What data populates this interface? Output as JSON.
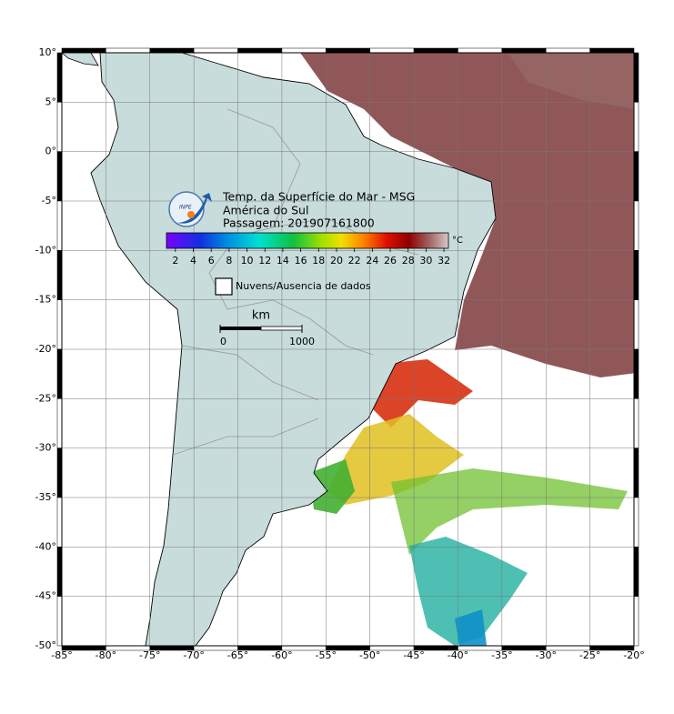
{
  "title_lines": [
    "Temp. da Superfície do Mar - MSG",
    "América do Sul",
    "Passagem: 201907161800"
  ],
  "logo_text": "INPE",
  "colorbar": {
    "unit": "°C",
    "lim": [
      1,
      32.5
    ],
    "ticks": [
      2,
      4,
      6,
      8,
      10,
      12,
      14,
      16,
      18,
      20,
      22,
      24,
      26,
      28,
      30,
      32
    ]
  },
  "legend": "Nuvens/Ausencia de dados",
  "scale_bar": {
    "unit": "km",
    "ticks": [
      0,
      1000
    ]
  },
  "map": {
    "xlim": [
      -85,
      -20
    ],
    "ylim": [
      -50,
      10
    ],
    "grid": true,
    "xticks": [
      {
        "value": -85,
        "label": "-85°"
      },
      {
        "value": -80,
        "label": "-80°"
      },
      {
        "value": -75,
        "label": "-75°"
      },
      {
        "value": -70,
        "label": "-70°"
      },
      {
        "value": -65,
        "label": "-65°"
      },
      {
        "value": -60,
        "label": "-60°"
      },
      {
        "value": -55,
        "label": "-55°"
      },
      {
        "value": -50,
        "label": "-50°"
      },
      {
        "value": -45,
        "label": "-45°"
      },
      {
        "value": -40,
        "label": "-40°"
      },
      {
        "value": -35,
        "label": "-35°"
      },
      {
        "value": -30,
        "label": "-30°"
      },
      {
        "value": -25,
        "label": "-25°"
      },
      {
        "value": -20,
        "label": "-20°"
      }
    ],
    "yticks": [
      {
        "value": 10,
        "label": "10°"
      },
      {
        "value": 5,
        "label": "5°"
      },
      {
        "value": 0,
        "label": "0°"
      },
      {
        "value": -5,
        "label": "-5°"
      },
      {
        "value": -10,
        "label": "-10°"
      },
      {
        "value": -15,
        "label": "-15°"
      },
      {
        "value": -20,
        "label": "-20°"
      },
      {
        "value": -25,
        "label": "-25°"
      },
      {
        "value": -30,
        "label": "-30°"
      },
      {
        "value": -35,
        "label": "-35°"
      },
      {
        "value": -40,
        "label": "-40°"
      },
      {
        "value": -45,
        "label": "-45°"
      },
      {
        "value": -50,
        "label": "-50°"
      }
    ]
  }
}
